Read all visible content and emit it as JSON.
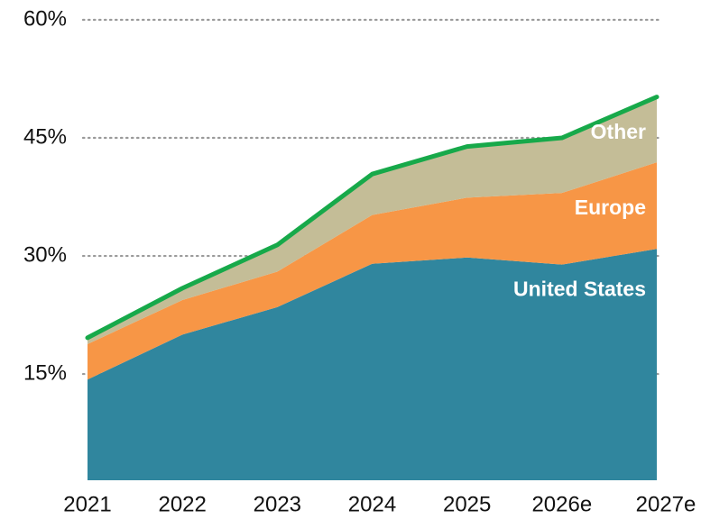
{
  "chart_data": {
    "type": "stacked_area",
    "categories": [
      "2021",
      "2022",
      "2023",
      "2024",
      "2025",
      "2026e",
      "2027e"
    ],
    "series": [
      {
        "name": "United States",
        "color": "#30869e",
        "values": [
          14.3,
          20.0,
          23.5,
          29.0,
          29.8,
          28.9,
          30.9
        ]
      },
      {
        "name": "Europe",
        "color": "#f79646",
        "values": [
          4.5,
          4.4,
          4.5,
          6.2,
          7.6,
          9.1,
          11.0
        ]
      },
      {
        "name": "Other",
        "color": "#c4bd97",
        "values": [
          0.8,
          1.5,
          3.4,
          5.2,
          6.5,
          7.0,
          8.3
        ]
      }
    ],
    "total_line_color": "#17a94a",
    "ylim": [
      1.5,
      60
    ],
    "yticks": [
      {
        "value": 15,
        "label": "15%"
      },
      {
        "value": 30,
        "label": "30%"
      },
      {
        "value": 45,
        "label": "45%"
      },
      {
        "value": 60,
        "label": "60%"
      }
    ],
    "grid": true
  }
}
